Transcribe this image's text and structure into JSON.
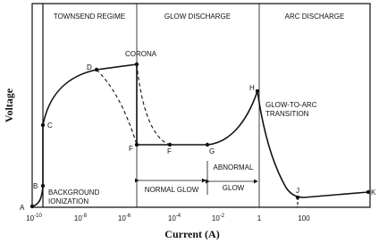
{
  "diagram": {
    "regions": [
      "TOWNSEND REGIME",
      "GLOW DISCHARGE",
      "ARC DISCHARGE"
    ],
    "points": [
      "A",
      "B",
      "C",
      "D",
      "F",
      "F",
      "G",
      "H",
      "J",
      "K"
    ],
    "annotations": {
      "corona": "CORONA",
      "background": [
        "BACKGROUND",
        "IONIZATION"
      ],
      "transition": [
        "GLOW-TO-ARC",
        "TRANSITION"
      ],
      "normal_glow": "NORMAL GLOW",
      "abnormal_glow": [
        "ABNORMAL",
        "GLOW"
      ]
    },
    "x_ticks": [
      {
        "base": "10",
        "exp": "-10"
      },
      {
        "base": "10",
        "exp": "-8"
      },
      {
        "base": "10",
        "exp": "-6"
      },
      {
        "base": "10",
        "exp": "-4"
      },
      {
        "base": "10",
        "exp": "-2"
      },
      {
        "base": "1"
      },
      {
        "base": "100"
      }
    ],
    "x_axis_title": "Current (A)",
    "y_axis_title": "Voltage"
  }
}
